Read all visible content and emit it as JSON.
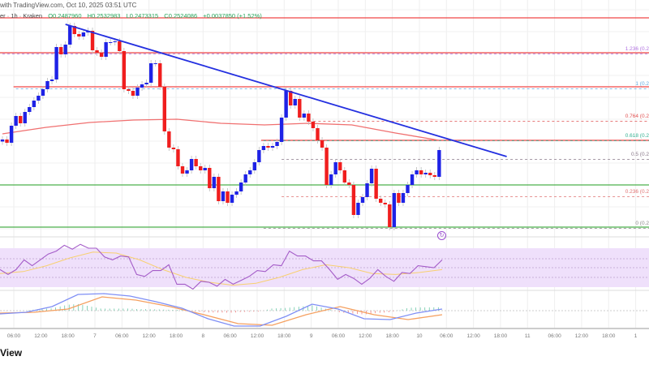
{
  "header": {
    "source": "with TradingView.com, Oct 10, 2025 03:51 UTC",
    "symbol": "er · 1h · Kraken",
    "open": "O0.2487960",
    "high": "H0.2532983",
    "low": "L0.2473315",
    "close": "C0.2524086",
    "change": "+0.0037850 (+1.52%)"
  },
  "brand": "View",
  "colors": {
    "up": "#1e22e6",
    "down": "#f01e1e",
    "trendline": "#2430e0",
    "ma": "#f07070",
    "support": "#4cb04c",
    "resistance": "#f04848",
    "rsi": "#a45cc8",
    "rsi_ma": "#f8d070",
    "rsi_band": "#efe0fb",
    "macd": "#7f8ff5",
    "signal": "#f5a060"
  },
  "chart_data": {
    "type": "candlestick",
    "interval": "1h",
    "first_open": 0.2545,
    "closes": [
      0.255,
      0.2542,
      0.2584,
      0.2608,
      0.259,
      0.2618,
      0.263,
      0.2646,
      0.2658,
      0.2674,
      0.2694,
      0.2698,
      0.2778,
      0.276,
      0.2784,
      0.283,
      0.281,
      0.2804,
      0.2814,
      0.2818,
      0.277,
      0.2764,
      0.2754,
      0.279,
      0.279,
      0.2792,
      0.2768,
      0.2674,
      0.267,
      0.2658,
      0.2678,
      0.2686,
      0.269,
      0.2738,
      0.2738,
      0.268,
      0.257,
      0.253,
      0.2526,
      0.2484,
      0.2466,
      0.2474,
      0.2502,
      0.2484,
      0.2474,
      0.248,
      0.243,
      0.2458,
      0.2398,
      0.2422,
      0.2394,
      0.2414,
      0.2422,
      0.2444,
      0.2464,
      0.2474,
      0.2494,
      0.2524,
      0.2534,
      0.253,
      0.2534,
      0.2544,
      0.2604,
      0.267,
      0.2634,
      0.265,
      0.2604,
      0.2614,
      0.2594,
      0.2578,
      0.2548,
      0.253,
      0.2438,
      0.2464,
      0.2494,
      0.2474,
      0.2444,
      0.2438,
      0.2364,
      0.2394,
      0.2408,
      0.2442,
      0.2478,
      0.2404,
      0.2394,
      0.239,
      0.2334,
      0.2418,
      0.2394,
      0.2418,
      0.2438,
      0.2464,
      0.2474,
      0.2464,
      0.2468,
      0.2462,
      0.2458,
      0.2524
    ],
    "ma": [
      0.2564,
      0.258,
      0.2592,
      0.2598,
      0.26,
      0.259,
      0.2586,
      0.259,
      0.2586,
      0.2566,
      0.2548
    ],
    "trendline": {
      "from": [
        14,
        0.2834
      ],
      "to": [
        112,
        0.2508
      ]
    },
    "horizontal_levels": [
      {
        "price": 0.285,
        "type": "resistance",
        "from_index": 0
      },
      {
        "price": 0.2764,
        "type": "resistance",
        "from_index": 0
      },
      {
        "price": 0.268,
        "type": "resistance",
        "from_index": 3
      },
      {
        "price": 0.2548,
        "type": "resistance",
        "from_index": 58
      },
      {
        "price": 0.2438,
        "type": "support",
        "from_index": 0
      },
      {
        "price": 0.2334,
        "type": "support",
        "from_index": 0
      }
    ],
    "fib_levels": [
      {
        "label": "1.236 (0.2",
        "price": 0.2764,
        "color": "#b070e0",
        "from_index": 0
      },
      {
        "label": "1 (0.2",
        "price": 0.2678,
        "color": "#60a8e0",
        "from_index": 3
      },
      {
        "label": "0.764 (0.2",
        "price": 0.2598,
        "color": "#e05050",
        "from_index": 68
      },
      {
        "label": "0.618 (0.2",
        "price": 0.255,
        "color": "#30b090",
        "from_index": 58
      },
      {
        "label": "0.5 (0.2",
        "price": 0.2504,
        "color": "#887788",
        "from_index": 62
      },
      {
        "label": "0.236 (0.2",
        "price": 0.2412,
        "color": "#e07070",
        "from_index": 62
      },
      {
        "label": "0 (0.2",
        "price": 0.2334,
        "color": "#888888",
        "from_index": 58
      }
    ],
    "rsi": [
      48,
      43,
      48,
      58,
      52,
      58,
      64,
      67,
      73,
      69,
      74,
      70,
      70,
      61,
      58,
      62,
      61,
      43,
      41,
      47,
      47,
      53,
      33,
      33,
      28,
      36,
      35,
      31,
      38,
      33,
      37,
      41,
      47,
      46,
      53,
      52,
      67,
      62,
      62,
      57,
      57,
      48,
      38,
      43,
      39,
      33,
      39,
      48,
      41,
      36,
      45,
      44,
      52,
      51,
      50,
      58
    ],
    "rsi_ma": [
      44,
      46,
      52,
      60,
      66,
      65,
      58,
      48,
      40,
      35,
      32,
      34,
      40,
      48,
      53,
      50,
      44,
      43,
      45,
      48
    ],
    "macd": [
      -4,
      -2,
      5,
      20,
      21,
      18,
      11,
      3,
      -10,
      -19,
      -19,
      -7,
      8,
      2,
      -10,
      -11,
      -3,
      2
    ],
    "signal": [
      -3,
      -2,
      2,
      17,
      13,
      5,
      -5,
      -16,
      -18,
      -5,
      5,
      -5,
      -11,
      -5
    ],
    "time_labels": [
      "06:00",
      "12:00",
      "18:00",
      "7",
      "06:00",
      "12:00",
      "18:00",
      "8",
      "06:00",
      "12:00",
      "18:00",
      "9",
      "06:00",
      "12:00",
      "18:00",
      "10",
      "06:00",
      "12:00",
      "18:00",
      "11",
      "06:00",
      "12:00",
      "18:00",
      "1"
    ]
  }
}
